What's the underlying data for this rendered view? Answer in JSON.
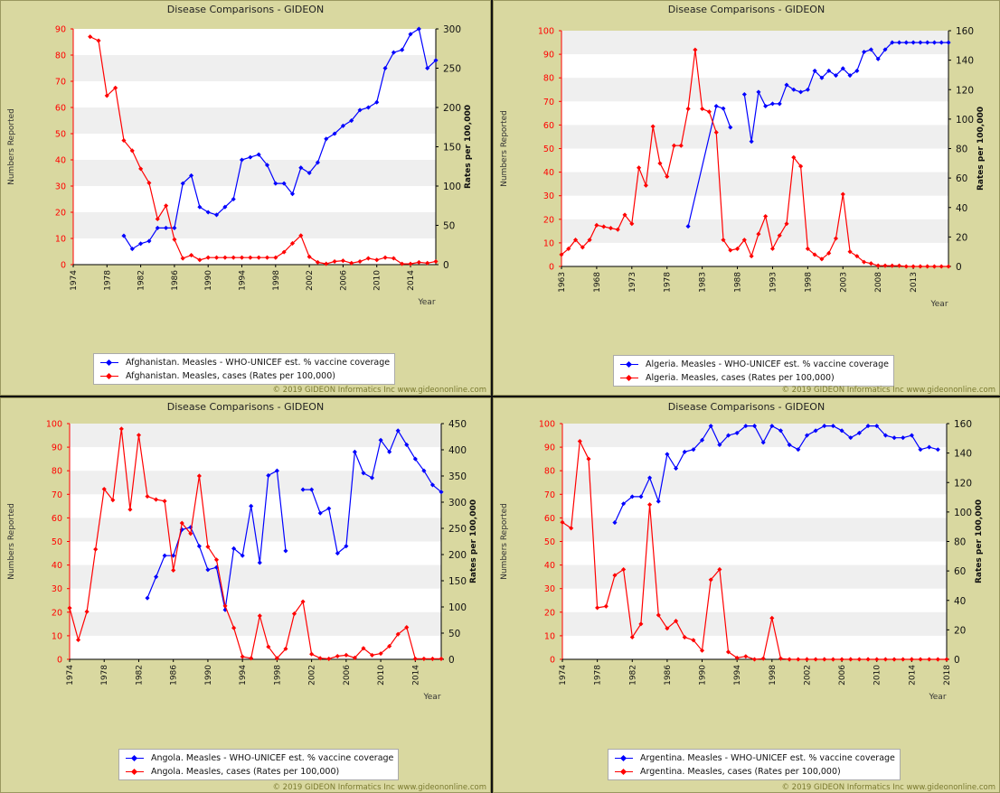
{
  "colors": {
    "coverage": "#0000ff",
    "cases": "#ff0000",
    "panel_bg": "#d9d8a0",
    "plot_band": "#efefef"
  },
  "chart_data": [
    {
      "type": "line",
      "title": "Disease Comparisons - GIDEON",
      "ylabel_left": "Numbers Reported",
      "ylabel_right": "Rates per 100,000",
      "xlabel": "Year",
      "xlim": [
        1974,
        2017
      ],
      "xticks": [
        "1974",
        "1978",
        "1982",
        "1986",
        "1990",
        "1994",
        "1998",
        "2002",
        "2006",
        "2010",
        "2014"
      ],
      "ylim_left": [
        0,
        90
      ],
      "yticks_left": [
        0,
        10,
        20,
        30,
        40,
        50,
        60,
        70,
        80,
        90
      ],
      "ylim_right": [
        0,
        300
      ],
      "yticks_right": [
        0,
        50,
        100,
        150,
        200,
        250,
        300
      ],
      "legend": [
        "Afghanistan. Measles - WHO-UNICEF est. % vaccine coverage",
        "Afghanistan. Measles, cases (Rates per 100,000)"
      ],
      "copyright": "© 2019 GIDEON Informatics Inc www.gideononline.com",
      "series": [
        {
          "name": "Afghanistan. Measles - WHO-UNICEF est. % vaccine coverage",
          "axis": "left",
          "color": "#0000ff",
          "x": [
            1980,
            1981,
            1982,
            1983,
            1984,
            1985,
            1986,
            1987,
            1988,
            1989,
            1990,
            1991,
            1992,
            1993,
            1994,
            1995,
            1996,
            1997,
            1998,
            1999,
            2000,
            2001,
            2002,
            2003,
            2004,
            2005,
            2006,
            2007,
            2008,
            2009,
            2010,
            2011,
            2012,
            2013,
            2014,
            2015,
            2016,
            2017
          ],
          "y": [
            11,
            6,
            8,
            9,
            14,
            14,
            14,
            31,
            34,
            22,
            20,
            19,
            22,
            25,
            40,
            41,
            42,
            38,
            31,
            31,
            27,
            37,
            35,
            39,
            48,
            50,
            53,
            55,
            59,
            60,
            62,
            75,
            81,
            82,
            88,
            90,
            75,
            78
          ]
        },
        {
          "name": "Afghanistan. Measles, cases (Rates per 100,000)",
          "axis": "right",
          "color": "#ff0000",
          "x": [
            1976,
            1977,
            1978,
            1979,
            1980,
            1981,
            1982,
            1983,
            1984,
            1985,
            1986,
            1987,
            1988,
            1989,
            1990,
            1991,
            1992,
            1993,
            1994,
            1995,
            1996,
            1997,
            1998,
            1999,
            2000,
            2001,
            2002,
            2003,
            2004,
            2005,
            2006,
            2007,
            2008,
            2009,
            2010,
            2011,
            2012,
            2013,
            2014,
            2015,
            2016,
            2017
          ],
          "y": [
            290,
            285,
            215,
            225,
            158,
            145,
            122,
            104,
            58,
            75,
            32,
            8,
            12,
            6,
            9,
            9,
            9,
            9,
            9,
            9,
            9,
            9,
            9,
            16,
            27,
            37,
            10,
            3,
            1,
            4,
            5,
            2,
            4,
            8,
            6,
            9,
            8,
            1,
            1,
            3,
            2,
            4
          ]
        }
      ]
    },
    {
      "type": "line",
      "title": "Disease Comparisons - GIDEON",
      "ylabel_left": "Numbers Reported",
      "ylabel_right": "Rates per 100,000",
      "xlabel": "Year",
      "xlim": [
        1963,
        2018
      ],
      "xticks": [
        "1963",
        "1968",
        "1973",
        "1978",
        "1983",
        "1988",
        "1993",
        "1998",
        "2003",
        "2008",
        "2013"
      ],
      "ylim_left": [
        0,
        100
      ],
      "yticks_left": [
        0,
        10,
        20,
        30,
        40,
        50,
        60,
        70,
        80,
        90,
        100
      ],
      "ylim_right": [
        0,
        160
      ],
      "yticks_right": [
        0,
        20,
        40,
        60,
        80,
        100,
        120,
        140,
        160
      ],
      "legend": [
        "Algeria. Measles - WHO-UNICEF est. % vaccine coverage",
        "Algeria. Measles, cases (Rates per 100,000)"
      ],
      "copyright": "© 2019 GIDEON Informatics Inc www.gideononline.com",
      "series": [
        {
          "name": "Algeria. Measles - WHO-UNICEF est. % vaccine coverage",
          "axis": "left",
          "color": "#0000ff",
          "x": [
            1981,
            1985,
            1986,
            1987,
            null,
            1989,
            1990,
            1991,
            1992,
            1993,
            1994,
            1995,
            1996,
            1997,
            1998,
            1999,
            2000,
            2001,
            2002,
            2003,
            2004,
            2005,
            2006,
            2007,
            2008,
            2009,
            2010,
            2011,
            2012,
            2013,
            2014,
            2015,
            2016,
            2017,
            2018
          ],
          "y": [
            17,
            68,
            67,
            59,
            null,
            73,
            53,
            74,
            68,
            69,
            69,
            77,
            75,
            74,
            75,
            83,
            80,
            83,
            81,
            84,
            81,
            83,
            91,
            92,
            88,
            92,
            95,
            95,
            95,
            95,
            95,
            95,
            95,
            95,
            95
          ]
        },
        {
          "name": "Algeria. Measles, cases (Rates per 100,000)",
          "axis": "right",
          "color": "#ff0000",
          "x": [
            1963,
            1964,
            1965,
            1966,
            1967,
            1968,
            1969,
            1970,
            1971,
            1972,
            1973,
            1974,
            1975,
            1976,
            1977,
            1978,
            1979,
            1980,
            1981,
            1982,
            1983,
            1984,
            1985,
            1986,
            1987,
            1988,
            1989,
            1990,
            1991,
            1992,
            1993,
            1994,
            1995,
            1996,
            1997,
            1998,
            1999,
            2000,
            2001,
            2002,
            2003,
            2004,
            2005,
            2006,
            2007,
            2008,
            2009,
            2010,
            2011,
            2012,
            2013,
            2014,
            2015,
            2016,
            2017,
            2018
          ],
          "y": [
            8,
            12,
            18,
            13,
            18,
            28,
            27,
            26,
            25,
            35,
            29,
            67,
            55,
            95,
            70,
            61,
            82,
            82,
            107,
            147,
            107,
            105,
            91,
            18,
            11,
            12,
            18,
            7,
            22,
            34,
            12,
            21,
            29,
            74,
            68,
            12,
            8,
            5,
            9,
            19,
            49,
            10,
            7,
            3,
            2,
            0.5,
            0.5,
            0.5,
            0.5,
            0,
            0,
            0,
            0,
            0,
            0,
            0
          ]
        }
      ]
    },
    {
      "type": "line",
      "title": "Disease Comparisons - GIDEON",
      "ylabel_left": "Numbers Reported",
      "ylabel_right": "Rates per 100,000",
      "xlabel": "Year",
      "xlim": [
        1974,
        2017
      ],
      "xticks": [
        "1974",
        "1978",
        "1982",
        "1986",
        "1990",
        "1994",
        "1998",
        "2002",
        "2006",
        "2010",
        "2014"
      ],
      "ylim_left": [
        0,
        100
      ],
      "yticks_left": [
        0,
        10,
        20,
        30,
        40,
        50,
        60,
        70,
        80,
        90,
        100
      ],
      "ylim_right": [
        0,
        450
      ],
      "yticks_right": [
        0,
        50,
        100,
        150,
        200,
        250,
        300,
        350,
        400,
        450
      ],
      "legend": [
        "Angola. Measles - WHO-UNICEF est. % vaccine coverage",
        "Angola. Measles, cases (Rates per 100,000)"
      ],
      "copyright": "© 2019 GIDEON Informatics Inc www.gideononline.com",
      "series": [
        {
          "name": "Angola. Measles - WHO-UNICEF est. % vaccine coverage",
          "axis": "left",
          "color": "#0000ff",
          "x": [
            1983,
            1984,
            1985,
            1986,
            1987,
            1988,
            1989,
            1990,
            1991,
            1992,
            1993,
            1994,
            1995,
            1996,
            1997,
            1998,
            1999,
            null,
            2001,
            2002,
            2003,
            2004,
            2005,
            2006,
            2007,
            2008,
            2009,
            2010,
            2011,
            2012,
            2013,
            2014,
            2015,
            2016,
            2017
          ],
          "y": [
            26,
            35,
            44,
            44,
            55,
            56,
            48,
            38,
            39,
            21,
            47,
            44,
            65,
            41,
            78,
            80,
            46,
            null,
            72,
            72,
            62,
            64,
            45,
            48,
            88,
            79,
            77,
            93,
            88,
            97,
            91,
            85,
            80,
            74,
            71
          ]
        },
        {
          "name": "Angola. Measles, cases (Rates per 100,000)",
          "axis": "right",
          "color": "#ff0000",
          "x": [
            1974,
            1975,
            1976,
            1977,
            1978,
            1979,
            1980,
            1981,
            1982,
            1983,
            1984,
            1985,
            1986,
            1987,
            1988,
            1989,
            1990,
            1991,
            1992,
            1993,
            1994,
            1995,
            1996,
            1997,
            1998,
            1999,
            2000,
            2001,
            2002,
            2003,
            2004,
            2005,
            2006,
            2007,
            2008,
            2009,
            2010,
            2011,
            2012,
            2013,
            2014,
            2015,
            2016,
            2017
          ],
          "y": [
            98,
            37,
            91,
            210,
            325,
            304,
            440,
            286,
            428,
            311,
            305,
            302,
            170,
            260,
            240,
            350,
            215,
            190,
            102,
            60,
            5,
            2,
            83,
            24,
            2,
            20,
            87,
            110,
            10,
            2,
            1,
            6,
            8,
            3,
            21,
            8,
            11,
            25,
            48,
            61,
            1,
            1,
            1,
            1
          ]
        }
      ]
    },
    {
      "type": "line",
      "title": "Disease Comparisons - GIDEON",
      "ylabel_left": "Numbers Reported",
      "ylabel_right": "Rates per 100,000",
      "xlabel": "Year",
      "xlim": [
        1974,
        2018
      ],
      "xticks": [
        "1974",
        "1978",
        "1982",
        "1986",
        "1990",
        "1994",
        "1998",
        "2002",
        "2006",
        "2010",
        "2014",
        "2018"
      ],
      "ylim_left": [
        0,
        100
      ],
      "yticks_left": [
        0,
        10,
        20,
        30,
        40,
        50,
        60,
        70,
        80,
        90,
        100
      ],
      "ylim_right": [
        0,
        160
      ],
      "yticks_right": [
        0,
        20,
        40,
        60,
        80,
        100,
        120,
        140,
        160
      ],
      "legend": [
        "Argentina. Measles - WHO-UNICEF est. % vaccine coverage",
        "Argentina. Measles, cases (Rates per 100,000)"
      ],
      "copyright": "© 2019 GIDEON Informatics Inc www.gideononline.com",
      "series": [
        {
          "name": "Argentina. Measles - WHO-UNICEF est. % vaccine coverage",
          "axis": "left",
          "color": "#0000ff",
          "x": [
            1980,
            1981,
            1982,
            1983,
            1984,
            1985,
            1986,
            1987,
            1988,
            1989,
            1990,
            1991,
            1992,
            1993,
            1994,
            1995,
            1996,
            1997,
            1998,
            1999,
            2000,
            2001,
            2002,
            2003,
            2004,
            2005,
            2006,
            2007,
            2008,
            2009,
            2010,
            2011,
            2012,
            2013,
            2014,
            2015,
            2016,
            2017
          ],
          "y": [
            58,
            66,
            69,
            69,
            77,
            67,
            87,
            81,
            88,
            89,
            93,
            99,
            91,
            95,
            96,
            99,
            99,
            92,
            99,
            97,
            91,
            89,
            95,
            97,
            99,
            99,
            97,
            94,
            96,
            99,
            99,
            95,
            94,
            94,
            95,
            89,
            90,
            89
          ]
        },
        {
          "name": "Argentina. Measles, cases (Rates per 100,000)",
          "axis": "right",
          "color": "#ff0000",
          "x": [
            1974,
            1975,
            1976,
            1977,
            1978,
            1979,
            1980,
            1981,
            1982,
            1983,
            1984,
            1985,
            1986,
            1987,
            1988,
            1989,
            1990,
            1991,
            1992,
            1993,
            1994,
            1995,
            1996,
            1997,
            1998,
            1999,
            2000,
            2001,
            2002,
            2003,
            2004,
            2005,
            2006,
            2007,
            2008,
            2009,
            2010,
            2011,
            2012,
            2013,
            2014,
            2015,
            2016,
            2017,
            2018
          ],
          "y": [
            93,
            89,
            148,
            136,
            35,
            36,
            57,
            61,
            15,
            24,
            105,
            30,
            21,
            26,
            15,
            13,
            6,
            54,
            61,
            5,
            1,
            2,
            0,
            0.5,
            28,
            0.5,
            0,
            0,
            0,
            0,
            0,
            0,
            0,
            0,
            0,
            0,
            0,
            0,
            0,
            0,
            0,
            0,
            0,
            0,
            0
          ]
        }
      ]
    }
  ]
}
